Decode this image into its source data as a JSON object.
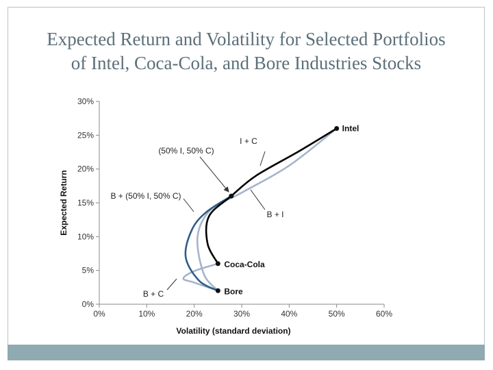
{
  "slide": {
    "title_lines": [
      "Expected Return and Volatility for Selected Portfolios",
      "of Intel, Coca-Cola, and Bore Industries Stocks"
    ]
  },
  "chart_data": {
    "type": "line",
    "xlabel": "Volatility (standard deviation)",
    "ylabel": "Expected Return",
    "xlim": [
      0,
      60
    ],
    "ylim": [
      0,
      30
    ],
    "xticks": [
      0,
      10,
      20,
      30,
      40,
      50,
      60
    ],
    "yticks": [
      0,
      5,
      10,
      15,
      20,
      25,
      30
    ],
    "xtick_labels": [
      "0%",
      "10%",
      "20%",
      "30%",
      "40%",
      "50%",
      "60%"
    ],
    "ytick_labels": [
      "0%",
      "5%",
      "10%",
      "15%",
      "20%",
      "25%",
      "30%"
    ],
    "grid": false,
    "points": [
      {
        "name": "Intel",
        "x": 50,
        "y": 26
      },
      {
        "name": "Coca-Cola",
        "x": 25,
        "y": 6
      },
      {
        "name": "Bore",
        "x": 25,
        "y": 2
      },
      {
        "name": "(50% I, 50% C)",
        "x": 27.8,
        "y": 16
      }
    ],
    "series": [
      {
        "name": "I + C",
        "color": "#000000",
        "points": [
          [
            25,
            6
          ],
          [
            22.8,
            9
          ],
          [
            23.1,
            13
          ],
          [
            27.8,
            16
          ],
          [
            33,
            19
          ],
          [
            42,
            22.6
          ],
          [
            50,
            26
          ]
        ]
      },
      {
        "name": "B + I",
        "color": "#a5b4cc",
        "points": [
          [
            25,
            2
          ],
          [
            22,
            4.5
          ],
          [
            20.7,
            10
          ],
          [
            23.5,
            14
          ],
          [
            30,
            16.5
          ],
          [
            40,
            20.5
          ],
          [
            50,
            26
          ]
        ]
      },
      {
        "name": "B + C",
        "color": "#a5b4cc",
        "points": [
          [
            25,
            2
          ],
          [
            20,
            3.2
          ],
          [
            17.7,
            3.8
          ],
          [
            20,
            4.9
          ],
          [
            25,
            6
          ]
        ]
      },
      {
        "name": "B + (50% I, 50% C)",
        "color": "#2f5c88",
        "points": [
          [
            25,
            2
          ],
          [
            21,
            3.5
          ],
          [
            18.2,
            7
          ],
          [
            19.5,
            11
          ],
          [
            22.5,
            13.6
          ],
          [
            27.8,
            16
          ]
        ]
      }
    ],
    "annotations": [
      {
        "text": "I + C"
      },
      {
        "text": "(50% I, 50% C)"
      },
      {
        "text": "B + (50% I, 50% C)"
      },
      {
        "text": "B + I"
      },
      {
        "text": "B + C"
      }
    ]
  }
}
